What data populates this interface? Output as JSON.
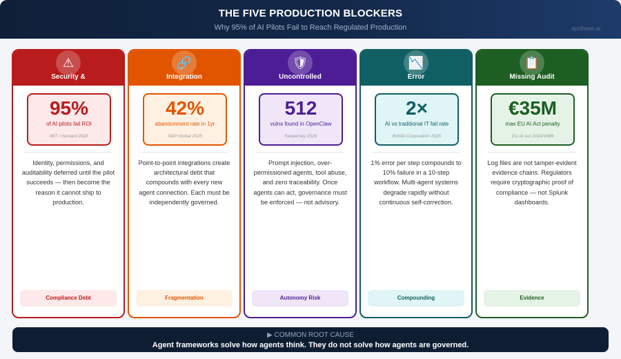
{
  "header": {
    "title": "THE FIVE PRODUCTION BLOCKERS",
    "subtitle": "Why 95% of AI Pilots Fail to Reach Regulated Production",
    "brand": "apotheon.ai"
  },
  "cards": [
    {
      "icon": "warning-icon",
      "glyph": "⚠",
      "name": "Security &",
      "color": "#b91c1c",
      "tint": "#fde8ea",
      "stat": "95%",
      "stat_label": "of AI pilots fail ROI",
      "source": "MIT / Harvard 2025",
      "description": "Identity, permissions, and auditability deferred until the pilot succeeds — then become the reason it cannot ship to production.",
      "tag": "Compliance Debt"
    },
    {
      "icon": "link-icon",
      "glyph": "🔗",
      "name": "Integration",
      "color": "#e25500",
      "tint": "#fff1e2",
      "stat": "42%",
      "stat_label": "abandonment rate in 1yr",
      "source": "S&P Global 2025",
      "description": "Point-to-point integrations create architectural debt that compounds with every new agent connection. Each must be independently governed.",
      "tag": "Fragmentation"
    },
    {
      "icon": "shield-icon",
      "glyph": "🛡",
      "name": "Uncontrolled",
      "color": "#4c1d95",
      "tint": "#f0e6f8",
      "stat": "512",
      "stat_label": "vulns found in OpenClaw",
      "source": "Kaspersky 2026",
      "description": "Prompt injection, over-permissioned agents, tool abuse, and zero traceability. Once agents can act, governance must be enforced — not advisory.",
      "tag": "Autonomy Risk"
    },
    {
      "icon": "chart-down-icon",
      "glyph": "📉",
      "name": "Error",
      "color": "#0f5f63",
      "tint": "#e0f5f5",
      "stat": "2×",
      "stat_label": "AI vs traditional IT fail rate",
      "source": "RAND Corporation 2025",
      "description": "1% error per step compounds to 10% failure in a 10-step workflow. Multi-agent systems degrade rapidly without continuous self-correction.",
      "tag": "Compounding"
    },
    {
      "icon": "clipboard-icon",
      "glyph": "📋",
      "name": "Missing Audit",
      "color": "#1d5e22",
      "tint": "#e5f3e6",
      "stat": "€35M",
      "stat_label": "max EU AI Act penalty",
      "source": "EU AI Act 2024/1689",
      "description": "Log files are not tamper-evident evidence chains. Regulators require cryptographic proof of compliance — not Splunk dashboards.",
      "tag": "Evidence"
    }
  ],
  "footer": {
    "kicker": "▶ COMMON ROOT CAUSE",
    "message": "Agent frameworks solve how agents think. They do not solve how agents are governed."
  }
}
